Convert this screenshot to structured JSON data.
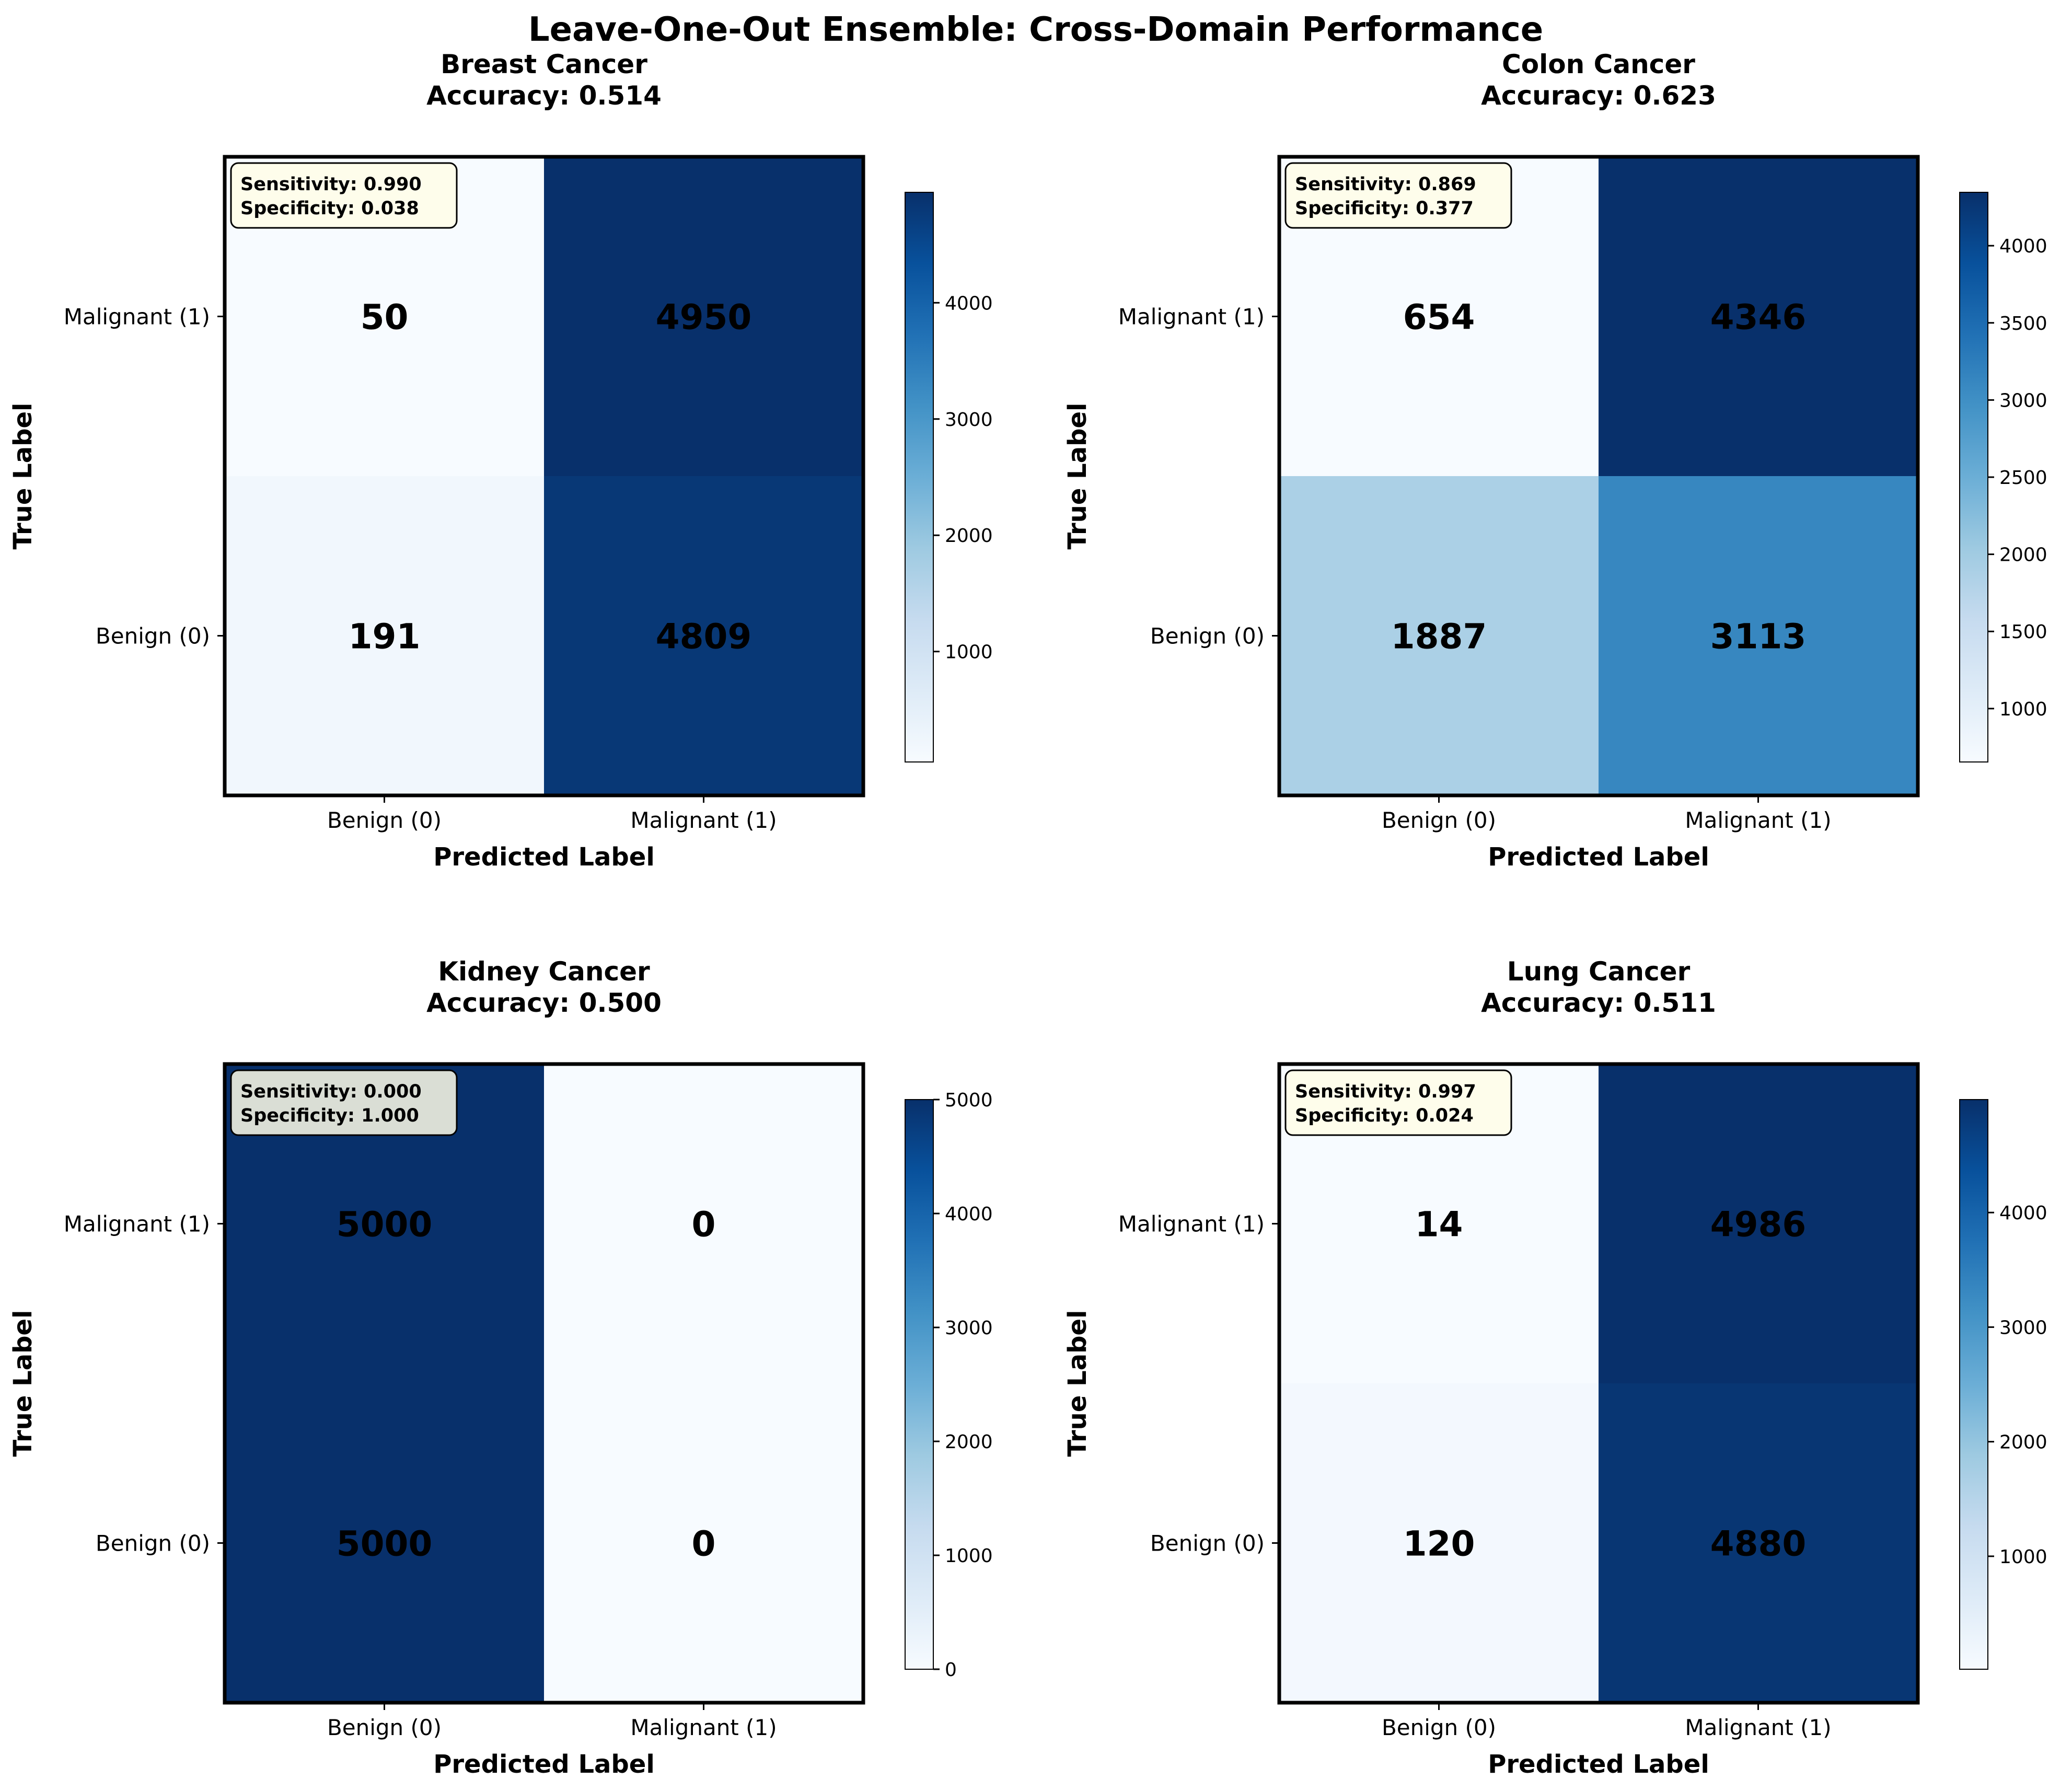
{
  "title": "Leave-One-Out Ensemble: Cross-Domain Performance",
  "colors": {
    "cmap": [
      "#f7fbff",
      "#deebf7",
      "#c6dbef",
      "#9ecae1",
      "#6baed6",
      "#4292c6",
      "#2171b5",
      "#08519c",
      "#08306b"
    ],
    "text_box_fill": "#fffde8",
    "frame": "#000000"
  },
  "chart_data": [
    {
      "type": "heatmap",
      "title": "Breast Cancer",
      "subtitle": "Accuracy: 0.514",
      "xlabel": "Predicted Label",
      "ylabel": "True Label",
      "xticklabels": [
        "Benign (0)",
        "Malignant (1)"
      ],
      "yticklabels": [
        "Malignant (1)",
        "Benign (0)"
      ],
      "matrix": [
        [
          50,
          4950
        ],
        [
          191,
          4809
        ]
      ],
      "vmin": 50,
      "vmax": 4950,
      "colorbar_ticks": [
        1000,
        2000,
        3000,
        4000
      ],
      "metrics": [
        "Sensitivity: 0.990",
        "Specificity: 0.038"
      ]
    },
    {
      "type": "heatmap",
      "title": "Colon Cancer",
      "subtitle": "Accuracy: 0.623",
      "xlabel": "Predicted Label",
      "ylabel": "True Label",
      "xticklabels": [
        "Benign (0)",
        "Malignant (1)"
      ],
      "yticklabels": [
        "Malignant (1)",
        "Benign (0)"
      ],
      "matrix": [
        [
          654,
          4346
        ],
        [
          1887,
          3113
        ]
      ],
      "vmin": 654,
      "vmax": 4346,
      "colorbar_ticks": [
        1000,
        1500,
        2000,
        2500,
        3000,
        3500,
        4000
      ],
      "metrics": [
        "Sensitivity: 0.869",
        "Specificity: 0.377"
      ]
    },
    {
      "type": "heatmap",
      "title": "Kidney Cancer",
      "subtitle": "Accuracy: 0.500",
      "xlabel": "Predicted Label",
      "ylabel": "True Label",
      "xticklabels": [
        "Benign (0)",
        "Malignant (1)"
      ],
      "yticklabels": [
        "Malignant (1)",
        "Benign (0)"
      ],
      "matrix": [
        [
          5000,
          0
        ],
        [
          5000,
          0
        ]
      ],
      "vmin": 0,
      "vmax": 5000,
      "colorbar_ticks": [
        0,
        1000,
        2000,
        3000,
        4000,
        5000
      ],
      "metrics": [
        "Sensitivity: 0.000",
        "Specificity: 1.000"
      ]
    },
    {
      "type": "heatmap",
      "title": "Lung Cancer",
      "subtitle": "Accuracy: 0.511",
      "xlabel": "Predicted Label",
      "ylabel": "True Label",
      "xticklabels": [
        "Benign (0)",
        "Malignant (1)"
      ],
      "yticklabels": [
        "Malignant (1)",
        "Benign (0)"
      ],
      "matrix": [
        [
          14,
          4986
        ],
        [
          120,
          4880
        ]
      ],
      "vmin": 14,
      "vmax": 4986,
      "colorbar_ticks": [
        1000,
        2000,
        3000,
        4000
      ],
      "metrics": [
        "Sensitivity: 0.997",
        "Specificity: 0.024"
      ]
    }
  ]
}
